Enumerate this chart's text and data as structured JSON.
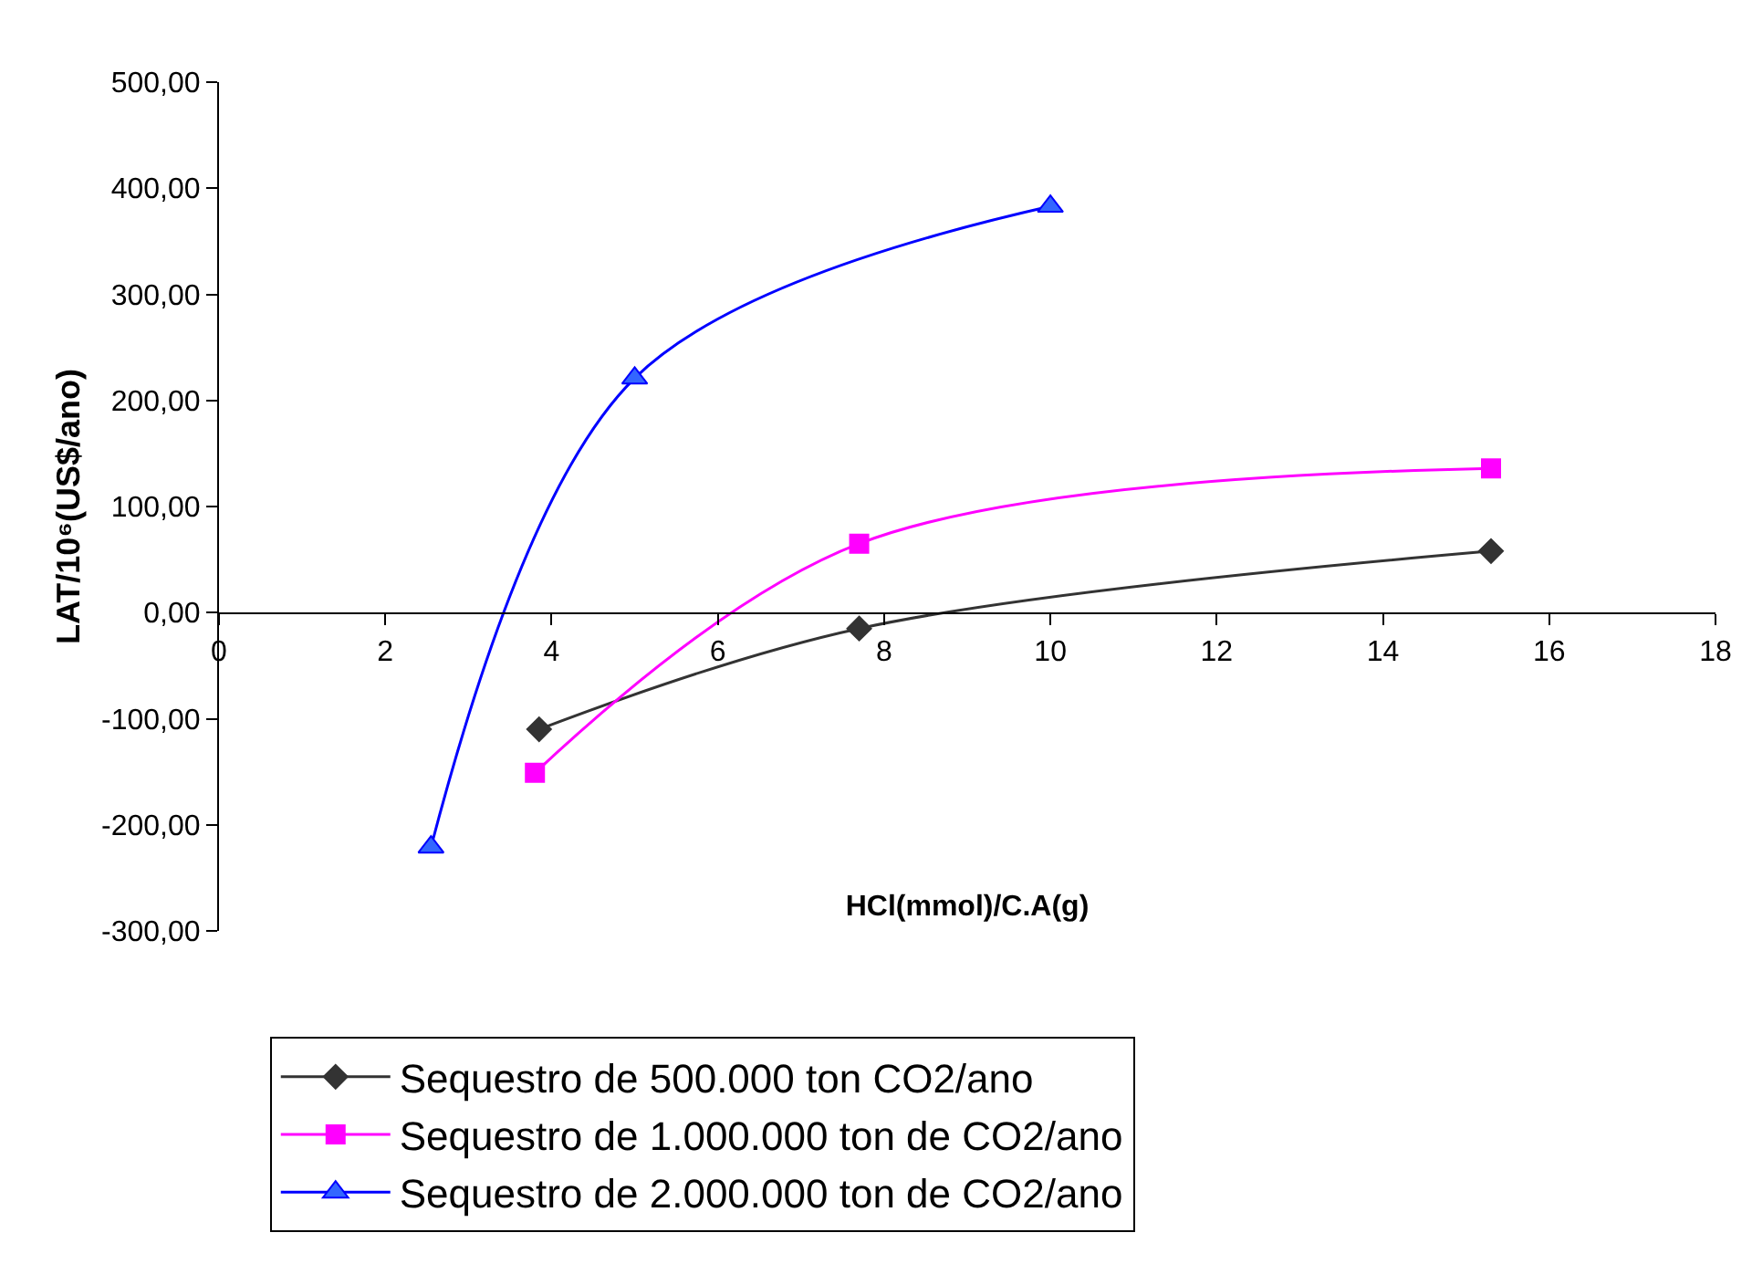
{
  "chart_data": {
    "type": "line",
    "xlabel": "HCl(mmol)/C.A(g)",
    "ylabel": "LAT/10⁶(US$/ano)",
    "xlim": [
      0,
      18
    ],
    "xticks": [
      0,
      2,
      4,
      6,
      8,
      10,
      12,
      14,
      16,
      18
    ],
    "ylim": [
      -300,
      500
    ],
    "yticks": [
      {
        "value": -300,
        "label": "-300,00"
      },
      {
        "value": -200,
        "label": "-200,00"
      },
      {
        "value": -100,
        "label": "-100,00"
      },
      {
        "value": 0,
        "label": "0,00"
      },
      {
        "value": 100,
        "label": "100,00"
      },
      {
        "value": 200,
        "label": "200,00"
      },
      {
        "value": 300,
        "label": "300,00"
      },
      {
        "value": 400,
        "label": "400,00"
      },
      {
        "value": 500,
        "label": "500,00"
      }
    ],
    "grid": false,
    "legend": "bottom left",
    "line_style": "solid",
    "series": [
      {
        "name": "Sequestro de 500.000 ton CO2/ano",
        "color": "#333333",
        "marker": "diamond",
        "x": [
          3.85,
          7.7,
          15.3
        ],
        "values": [
          -110,
          -15,
          58
        ]
      },
      {
        "name": "Sequestro de 1.000.000 ton de CO2/ano",
        "color": "#ff00ff",
        "marker": "square",
        "x": [
          3.8,
          7.7,
          15.3
        ],
        "values": [
          -151,
          65,
          136
        ]
      },
      {
        "name": "Sequestro de 2.000.000 ton de CO2/ano",
        "color": "#0000ff",
        "marker": "triangle",
        "x": [
          2.55,
          5.0,
          10.0
        ],
        "values": [
          -221,
          221,
          383
        ]
      }
    ]
  }
}
